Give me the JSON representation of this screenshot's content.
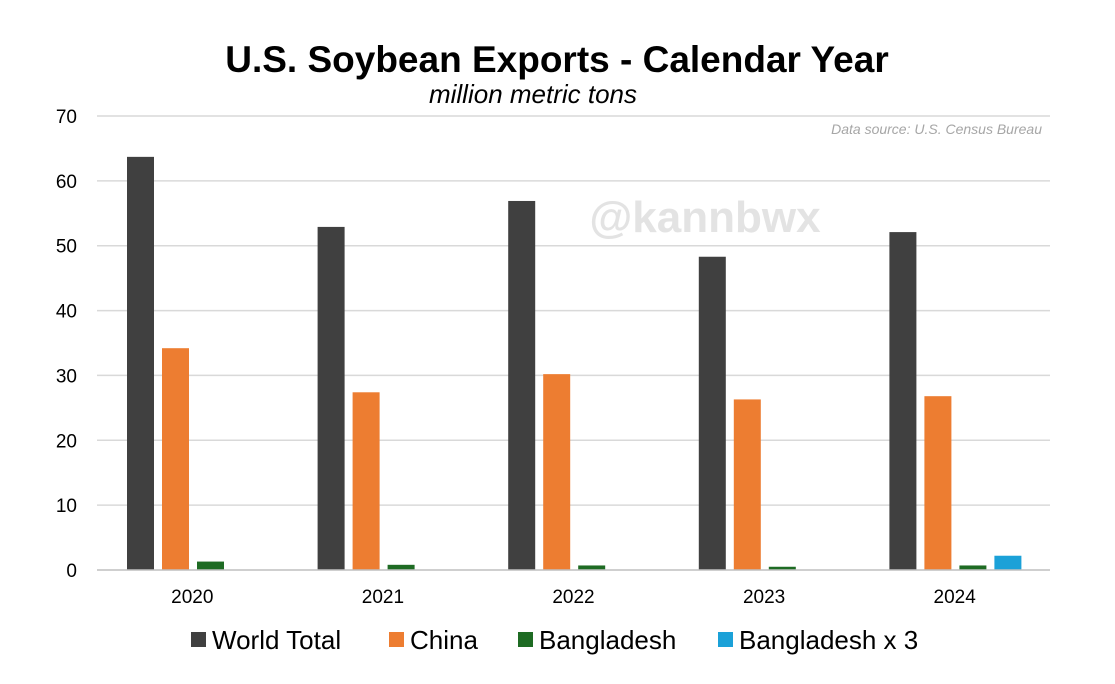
{
  "chart_data": {
    "type": "bar",
    "title": "U.S. Soybean Exports - Calendar Year",
    "subtitle": "million metric tons",
    "source_note": "Data source: U.S. Census Bureau",
    "watermark": "@kannbwx",
    "categories": [
      "2020",
      "2021",
      "2022",
      "2023",
      "2024"
    ],
    "ylim": [
      0,
      70
    ],
    "yticks": [
      0,
      10,
      20,
      30,
      40,
      50,
      60,
      70
    ],
    "grid": true,
    "legend_position": "bottom",
    "series": [
      {
        "name": "World Total",
        "color": "#404040",
        "values": [
          63.7,
          52.9,
          56.9,
          48.3,
          52.1
        ]
      },
      {
        "name": "China",
        "color": "#ed7d31",
        "values": [
          34.2,
          27.4,
          30.2,
          26.3,
          26.8
        ]
      },
      {
        "name": "Bangladesh",
        "color": "#1e6b23",
        "values": [
          1.3,
          0.8,
          0.7,
          0.5,
          0.7
        ]
      },
      {
        "name": "Bangladesh x 3",
        "color": "#1ba1d8",
        "values": [
          null,
          null,
          null,
          null,
          2.2
        ]
      }
    ]
  }
}
